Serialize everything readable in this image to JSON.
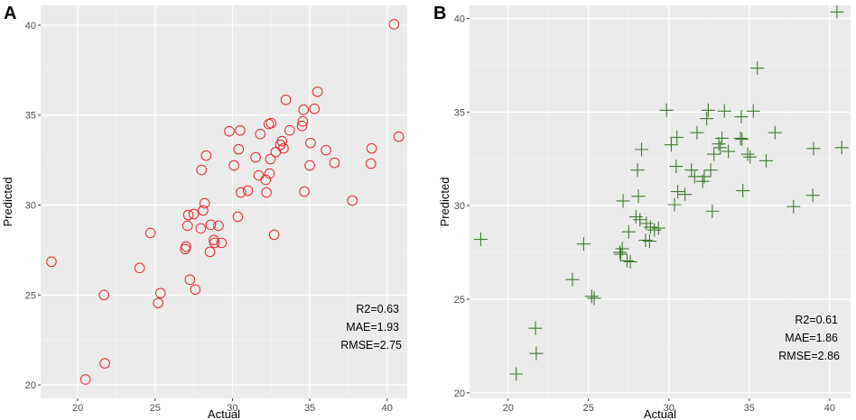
{
  "chart_data": [
    {
      "type": "scatter",
      "panel_label": "A",
      "xlabel": "Actual",
      "ylabel": "Predicted",
      "xlim": [
        17.6,
        41.3
      ],
      "ylim": [
        19.25,
        41.1
      ],
      "x_ticks": [
        20,
        25,
        30,
        35,
        40
      ],
      "y_ticks": [
        20,
        25,
        30,
        35,
        40
      ],
      "x_tick_labels": [
        "20",
        "25",
        "30",
        "35",
        "40"
      ],
      "y_tick_labels": [
        "20",
        "25",
        "30",
        "35",
        "40"
      ],
      "marker": "circle",
      "color": "#e8262a",
      "grid": true,
      "annotations": [
        "R2=0.63",
        "MAE=1.93",
        "RMSE=2.75"
      ],
      "points": [
        [
          18.3,
          26.85
        ],
        [
          20.5,
          20.3
        ],
        [
          21.7,
          25.0
        ],
        [
          21.75,
          21.2
        ],
        [
          24.0,
          26.5
        ],
        [
          24.7,
          28.45
        ],
        [
          25.2,
          24.55
        ],
        [
          25.35,
          25.1
        ],
        [
          26.95,
          27.55
        ],
        [
          27.0,
          27.7
        ],
        [
          27.1,
          28.85
        ],
        [
          27.15,
          29.45
        ],
        [
          27.25,
          25.85
        ],
        [
          27.5,
          29.5
        ],
        [
          27.6,
          25.3
        ],
        [
          27.95,
          28.7
        ],
        [
          28.0,
          31.95
        ],
        [
          28.1,
          29.7
        ],
        [
          28.2,
          30.1
        ],
        [
          28.3,
          32.75
        ],
        [
          28.55,
          27.4
        ],
        [
          28.6,
          28.9
        ],
        [
          28.8,
          28.05
        ],
        [
          28.85,
          27.9
        ],
        [
          29.1,
          28.85
        ],
        [
          29.3,
          27.9
        ],
        [
          29.8,
          34.1
        ],
        [
          30.1,
          32.2
        ],
        [
          30.35,
          29.35
        ],
        [
          30.4,
          33.1
        ],
        [
          30.5,
          34.15
        ],
        [
          30.55,
          30.7
        ],
        [
          31.0,
          30.8
        ],
        [
          31.5,
          32.65
        ],
        [
          31.7,
          31.65
        ],
        [
          31.8,
          33.95
        ],
        [
          32.15,
          31.4
        ],
        [
          32.2,
          30.7
        ],
        [
          32.35,
          34.5
        ],
        [
          32.4,
          31.75
        ],
        [
          32.45,
          32.55
        ],
        [
          32.5,
          34.55
        ],
        [
          32.7,
          28.35
        ],
        [
          32.8,
          32.95
        ],
        [
          33.1,
          33.35
        ],
        [
          33.2,
          33.55
        ],
        [
          33.3,
          33.15
        ],
        [
          33.45,
          35.85
        ],
        [
          33.7,
          34.15
        ],
        [
          34.5,
          34.4
        ],
        [
          34.55,
          34.65
        ],
        [
          34.6,
          35.3
        ],
        [
          34.65,
          30.75
        ],
        [
          35.0,
          32.2
        ],
        [
          35.05,
          33.45
        ],
        [
          35.3,
          35.35
        ],
        [
          35.5,
          36.3
        ],
        [
          36.05,
          33.05
        ],
        [
          36.6,
          32.35
        ],
        [
          37.75,
          30.25
        ],
        [
          38.95,
          32.3
        ],
        [
          39.0,
          33.15
        ],
        [
          40.45,
          40.05
        ],
        [
          40.75,
          33.8
        ]
      ]
    },
    {
      "type": "scatter",
      "panel_label": "B",
      "xlabel": "Actual",
      "ylabel": "Predicted",
      "xlim": [
        17.6,
        41.3
      ],
      "ylim": [
        19.7,
        40.7
      ],
      "x_ticks": [
        20,
        25,
        30,
        35,
        40
      ],
      "y_ticks": [
        20,
        25,
        30,
        35,
        40
      ],
      "x_tick_labels": [
        "20",
        "25",
        "30",
        "35",
        "40"
      ],
      "y_tick_labels": [
        "20",
        "25",
        "30",
        "35",
        "40"
      ],
      "marker": "cross",
      "color": "#3d7a2e",
      "grid": true,
      "annotations": [
        "R2=0.61",
        "MAE=1.86",
        "RMSE=2.86"
      ],
      "points": [
        [
          18.3,
          28.2
        ],
        [
          20.5,
          21.0
        ],
        [
          21.7,
          23.45
        ],
        [
          21.75,
          22.1
        ],
        [
          24.0,
          26.05
        ],
        [
          24.7,
          27.95
        ],
        [
          25.2,
          25.15
        ],
        [
          25.35,
          25.05
        ],
        [
          26.95,
          27.5
        ],
        [
          27.0,
          27.4
        ],
        [
          27.1,
          27.7
        ],
        [
          27.15,
          30.25
        ],
        [
          27.4,
          27.05
        ],
        [
          27.5,
          28.6
        ],
        [
          27.6,
          27.0
        ],
        [
          27.95,
          29.4
        ],
        [
          28.05,
          31.9
        ],
        [
          28.1,
          30.5
        ],
        [
          28.2,
          29.25
        ],
        [
          28.3,
          33.0
        ],
        [
          28.55,
          28.15
        ],
        [
          28.6,
          29.05
        ],
        [
          28.8,
          28.1
        ],
        [
          28.85,
          28.85
        ],
        [
          29.1,
          28.7
        ],
        [
          29.35,
          28.8
        ],
        [
          29.85,
          35.1
        ],
        [
          30.15,
          33.25
        ],
        [
          30.35,
          30.05
        ],
        [
          30.45,
          32.1
        ],
        [
          30.5,
          33.65
        ],
        [
          30.55,
          30.75
        ],
        [
          31.0,
          30.6
        ],
        [
          31.4,
          31.9
        ],
        [
          31.6,
          31.55
        ],
        [
          31.75,
          33.9
        ],
        [
          32.1,
          31.3
        ],
        [
          32.2,
          31.55
        ],
        [
          32.35,
          34.65
        ],
        [
          32.45,
          35.1
        ],
        [
          32.6,
          31.9
        ],
        [
          32.7,
          29.7
        ],
        [
          32.8,
          32.75
        ],
        [
          33.1,
          33.3
        ],
        [
          33.2,
          33.1
        ],
        [
          33.3,
          33.6
        ],
        [
          33.45,
          35.05
        ],
        [
          33.7,
          32.9
        ],
        [
          34.45,
          33.6
        ],
        [
          34.5,
          34.75
        ],
        [
          34.55,
          33.55
        ],
        [
          34.6,
          30.8
        ],
        [
          34.9,
          32.75
        ],
        [
          35.05,
          32.6
        ],
        [
          35.25,
          35.05
        ],
        [
          35.5,
          37.35
        ],
        [
          36.05,
          32.4
        ],
        [
          36.6,
          33.9
        ],
        [
          37.75,
          29.95
        ],
        [
          38.95,
          30.55
        ],
        [
          39.0,
          33.05
        ],
        [
          40.45,
          40.35
        ],
        [
          40.75,
          33.1
        ]
      ]
    }
  ]
}
